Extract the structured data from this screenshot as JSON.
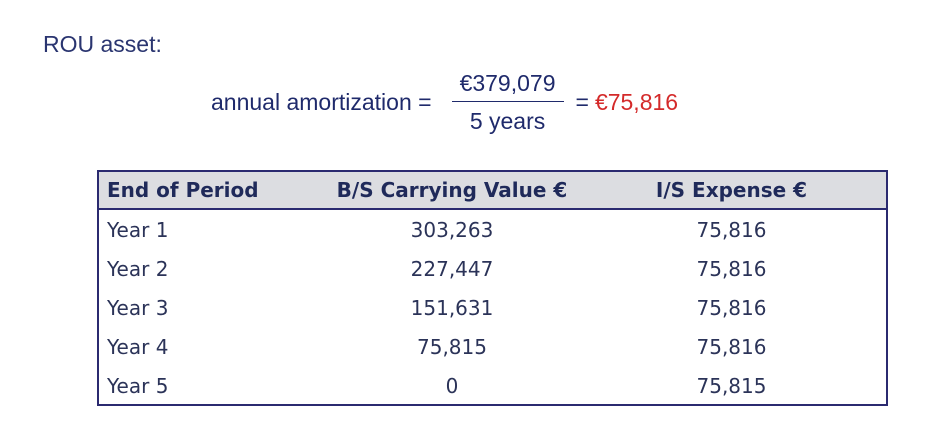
{
  "heading": "ROU asset:",
  "formula": {
    "lhs": "annual amortization =",
    "numerator": "€379,079",
    "denominator": "5 years",
    "equals": "=",
    "result": "€75,816"
  },
  "colors": {
    "text": "#1f2a6b",
    "result": "#d42a2a",
    "table_border": "#2b2a70",
    "header_bg": "#dcdde1"
  },
  "table": {
    "headers": [
      "End of Period",
      "B/S Carrying Value €",
      "I/S Expense €"
    ],
    "rows": [
      [
        "Year 1",
        "303,263",
        "75,816"
      ],
      [
        "Year 2",
        "227,447",
        "75,816"
      ],
      [
        "Year 3",
        "151,631",
        "75,816"
      ],
      [
        "Year 4",
        "75,815",
        "75,816"
      ],
      [
        "Year 5",
        "0",
        "75,815"
      ]
    ]
  }
}
